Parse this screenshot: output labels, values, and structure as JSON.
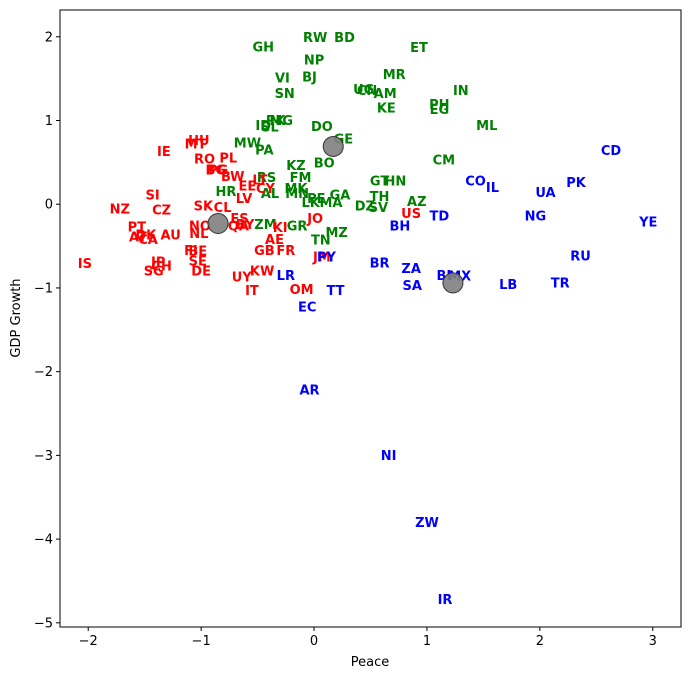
{
  "chart_data": {
    "type": "scatter",
    "title": "",
    "xlabel": "Peace",
    "ylabel": "GDP Growth",
    "xlim": [
      -2.25,
      3.25
    ],
    "ylim": [
      -5.05,
      2.32
    ],
    "xticks": [
      -2,
      -1,
      0,
      1,
      2,
      3
    ],
    "yticks": [
      -5,
      -4,
      -3,
      -2,
      -1,
      0,
      1,
      2
    ],
    "grid": false,
    "cluster_colors": {
      "red": "#ff0000",
      "green": "#008000",
      "blue": "#0000ff",
      "centroid": "#808080"
    },
    "centroids": [
      {
        "x": -0.85,
        "y": -0.23
      },
      {
        "x": 0.17,
        "y": 0.69
      },
      {
        "x": 1.23,
        "y": -0.94
      }
    ],
    "points": [
      {
        "label": "RW",
        "x": 0.01,
        "y": 1.99,
        "cluster": "green"
      },
      {
        "label": "BD",
        "x": 0.27,
        "y": 1.99,
        "cluster": "green"
      },
      {
        "label": "GH",
        "x": -0.45,
        "y": 1.88,
        "cluster": "green"
      },
      {
        "label": "ET",
        "x": 0.93,
        "y": 1.87,
        "cluster": "green"
      },
      {
        "label": "NP",
        "x": 0.0,
        "y": 1.72,
        "cluster": "green"
      },
      {
        "label": "VI",
        "x": -0.28,
        "y": 1.51,
        "cluster": "green"
      },
      {
        "label": "BJ",
        "x": -0.04,
        "y": 1.52,
        "cluster": "green"
      },
      {
        "label": "MR",
        "x": 0.71,
        "y": 1.55,
        "cluster": "green"
      },
      {
        "label": "SN",
        "x": -0.26,
        "y": 1.32,
        "cluster": "green"
      },
      {
        "label": "UG",
        "x": 0.44,
        "y": 1.37,
        "cluster": "green"
      },
      {
        "label": "CN",
        "x": 0.47,
        "y": 1.36,
        "cluster": "green"
      },
      {
        "label": "AM",
        "x": 0.63,
        "y": 1.32,
        "cluster": "green"
      },
      {
        "label": "IN",
        "x": 1.3,
        "y": 1.36,
        "cluster": "green"
      },
      {
        "label": "KE",
        "x": 0.64,
        "y": 1.15,
        "cluster": "green"
      },
      {
        "label": "PH",
        "x": 1.11,
        "y": 1.19,
        "cluster": "green"
      },
      {
        "label": "EG",
        "x": 1.11,
        "y": 1.13,
        "cluster": "green"
      },
      {
        "label": "PK",
        "x": -0.34,
        "y": 1.0,
        "cluster": "green"
      },
      {
        "label": "MG",
        "x": -0.29,
        "y": 1.0,
        "cluster": "green"
      },
      {
        "label": "ID",
        "x": -0.45,
        "y": 0.94,
        "cluster": "green"
      },
      {
        "label": "SL",
        "x": -0.39,
        "y": 0.92,
        "cluster": "green"
      },
      {
        "label": "DO",
        "x": 0.07,
        "y": 0.93,
        "cluster": "green"
      },
      {
        "label": "ML",
        "x": 1.53,
        "y": 0.94,
        "cluster": "green"
      },
      {
        "label": "GE",
        "x": 0.26,
        "y": 0.78,
        "cluster": "green"
      },
      {
        "label": "MW",
        "x": -0.59,
        "y": 0.73,
        "cluster": "green"
      },
      {
        "label": "PA",
        "x": -0.44,
        "y": 0.65,
        "cluster": "green"
      },
      {
        "label": "CM",
        "x": 1.15,
        "y": 0.53,
        "cluster": "green"
      },
      {
        "label": "KZ",
        "x": -0.16,
        "y": 0.46,
        "cluster": "green"
      },
      {
        "label": "BO",
        "x": 0.09,
        "y": 0.49,
        "cluster": "green"
      },
      {
        "label": "RS",
        "x": -0.42,
        "y": 0.32,
        "cluster": "green"
      },
      {
        "label": "FM",
        "x": -0.12,
        "y": 0.32,
        "cluster": "green"
      },
      {
        "label": "GT",
        "x": 0.58,
        "y": 0.28,
        "cluster": "green"
      },
      {
        "label": "HN",
        "x": 0.72,
        "y": 0.28,
        "cluster": "green"
      },
      {
        "label": "MK",
        "x": -0.16,
        "y": 0.19,
        "cluster": "green"
      },
      {
        "label": "HR",
        "x": -0.78,
        "y": 0.15,
        "cluster": "green"
      },
      {
        "label": "AL",
        "x": -0.39,
        "y": 0.13,
        "cluster": "green"
      },
      {
        "label": "MN",
        "x": -0.15,
        "y": 0.13,
        "cluster": "green"
      },
      {
        "label": "GA",
        "x": 0.23,
        "y": 0.11,
        "cluster": "green"
      },
      {
        "label": "TH",
        "x": 0.58,
        "y": 0.09,
        "cluster": "green"
      },
      {
        "label": "AZ",
        "x": 0.91,
        "y": 0.03,
        "cluster": "green"
      },
      {
        "label": "LK",
        "x": -0.03,
        "y": 0.02,
        "cluster": "green"
      },
      {
        "label": "PE",
        "x": 0.02,
        "y": 0.07,
        "cluster": "green"
      },
      {
        "label": "MA",
        "x": 0.15,
        "y": 0.02,
        "cluster": "green"
      },
      {
        "label": "DZ",
        "x": 0.45,
        "y": -0.02,
        "cluster": "green"
      },
      {
        "label": "SV",
        "x": 0.57,
        "y": -0.04,
        "cluster": "green"
      },
      {
        "label": "ZM",
        "x": -0.43,
        "y": -0.24,
        "cluster": "green"
      },
      {
        "label": "GR",
        "x": -0.15,
        "y": -0.26,
        "cluster": "green"
      },
      {
        "label": "MZ",
        "x": 0.2,
        "y": -0.34,
        "cluster": "green"
      },
      {
        "label": "TN",
        "x": 0.06,
        "y": -0.43,
        "cluster": "green"
      },
      {
        "label": "HU",
        "x": -1.02,
        "y": 0.76,
        "cluster": "red"
      },
      {
        "label": "MT",
        "x": -1.05,
        "y": 0.72,
        "cluster": "red"
      },
      {
        "label": "IE",
        "x": -1.33,
        "y": 0.63,
        "cluster": "red"
      },
      {
        "label": "RO",
        "x": -0.97,
        "y": 0.54,
        "cluster": "red"
      },
      {
        "label": "PL",
        "x": -0.76,
        "y": 0.55,
        "cluster": "red"
      },
      {
        "label": "BG",
        "x": -0.87,
        "y": 0.41,
        "cluster": "red"
      },
      {
        "label": "PG",
        "x": -0.85,
        "y": 0.41,
        "cluster": "red"
      },
      {
        "label": "BW",
        "x": -0.72,
        "y": 0.33,
        "cluster": "red"
      },
      {
        "label": "LT",
        "x": -0.48,
        "y": 0.29,
        "cluster": "red"
      },
      {
        "label": "EE",
        "x": -0.59,
        "y": 0.22,
        "cluster": "red"
      },
      {
        "label": "CY",
        "x": -0.43,
        "y": 0.19,
        "cluster": "red"
      },
      {
        "label": "LV",
        "x": -0.62,
        "y": 0.07,
        "cluster": "red"
      },
      {
        "label": "SI",
        "x": -1.43,
        "y": 0.11,
        "cluster": "red"
      },
      {
        "label": "SK",
        "x": -0.98,
        "y": -0.02,
        "cluster": "red"
      },
      {
        "label": "CL",
        "x": -0.81,
        "y": -0.04,
        "cluster": "red"
      },
      {
        "label": "NZ",
        "x": -1.72,
        "y": -0.06,
        "cluster": "red"
      },
      {
        "label": "CZ",
        "x": -1.35,
        "y": -0.07,
        "cluster": "red"
      },
      {
        "label": "ES",
        "x": -0.66,
        "y": -0.17,
        "cluster": "red"
      },
      {
        "label": "JO",
        "x": 0.01,
        "y": -0.17,
        "cluster": "red"
      },
      {
        "label": "US",
        "x": 0.86,
        "y": -0.11,
        "cluster": "red"
      },
      {
        "label": "PT",
        "x": -1.57,
        "y": -0.27,
        "cluster": "red"
      },
      {
        "label": "NO",
        "x": -1.01,
        "y": -0.26,
        "cluster": "red"
      },
      {
        "label": "QA",
        "x": -0.67,
        "y": -0.26,
        "cluster": "red"
      },
      {
        "label": "BY",
        "x": -0.61,
        "y": -0.24,
        "cluster": "red"
      },
      {
        "label": "KI",
        "x": -0.3,
        "y": -0.28,
        "cluster": "red"
      },
      {
        "label": "AT",
        "x": -1.56,
        "y": -0.39,
        "cluster": "red"
      },
      {
        "label": "DK",
        "x": -1.49,
        "y": -0.37,
        "cluster": "red"
      },
      {
        "label": "CA",
        "x": -1.47,
        "y": -0.42,
        "cluster": "red"
      },
      {
        "label": "AU",
        "x": -1.27,
        "y": -0.37,
        "cluster": "red"
      },
      {
        "label": "NL",
        "x": -1.02,
        "y": -0.35,
        "cluster": "red"
      },
      {
        "label": "AE",
        "x": -0.35,
        "y": -0.42,
        "cluster": "red"
      },
      {
        "label": "FI",
        "x": -1.09,
        "y": -0.55,
        "cluster": "red"
      },
      {
        "label": "BE",
        "x": -1.03,
        "y": -0.56,
        "cluster": "red"
      },
      {
        "label": "GB",
        "x": -0.44,
        "y": -0.55,
        "cluster": "red"
      },
      {
        "label": "FR",
        "x": -0.25,
        "y": -0.55,
        "cluster": "red"
      },
      {
        "label": "SE",
        "x": -1.03,
        "y": -0.68,
        "cluster": "red"
      },
      {
        "label": "IS",
        "x": -2.03,
        "y": -0.71,
        "cluster": "red"
      },
      {
        "label": "JP",
        "x": -1.38,
        "y": -0.69,
        "cluster": "red"
      },
      {
        "label": "CH",
        "x": -1.35,
        "y": -0.74,
        "cluster": "red"
      },
      {
        "label": "SG",
        "x": -1.42,
        "y": -0.8,
        "cluster": "red"
      },
      {
        "label": "DE",
        "x": -1.0,
        "y": -0.8,
        "cluster": "red"
      },
      {
        "label": "KW",
        "x": -0.46,
        "y": -0.8,
        "cluster": "red"
      },
      {
        "label": "UY",
        "x": -0.64,
        "y": -0.87,
        "cluster": "red"
      },
      {
        "label": "IT",
        "x": -0.55,
        "y": -1.03,
        "cluster": "red"
      },
      {
        "label": "OM",
        "x": -0.11,
        "y": -1.02,
        "cluster": "red"
      },
      {
        "label": "JM",
        "x": 0.07,
        "y": -0.63,
        "cluster": "red"
      },
      {
        "label": "CD",
        "x": 2.63,
        "y": 0.64,
        "cluster": "blue"
      },
      {
        "label": "CO",
        "x": 1.43,
        "y": 0.28,
        "cluster": "blue"
      },
      {
        "label": "IL",
        "x": 1.58,
        "y": 0.2,
        "cluster": "blue"
      },
      {
        "label": "UA",
        "x": 2.05,
        "y": 0.14,
        "cluster": "blue"
      },
      {
        "label": "PK",
        "x": 2.32,
        "y": 0.26,
        "cluster": "blue"
      },
      {
        "label": "TD",
        "x": 1.11,
        "y": -0.14,
        "cluster": "blue"
      },
      {
        "label": "NG",
        "x": 1.96,
        "y": -0.14,
        "cluster": "blue"
      },
      {
        "label": "YE",
        "x": 2.96,
        "y": -0.21,
        "cluster": "blue"
      },
      {
        "label": "BH",
        "x": 0.76,
        "y": -0.26,
        "cluster": "blue"
      },
      {
        "label": "PY",
        "x": 0.11,
        "y": -0.63,
        "cluster": "blue"
      },
      {
        "label": "RU",
        "x": 2.36,
        "y": -0.62,
        "cluster": "blue"
      },
      {
        "label": "BR",
        "x": 0.58,
        "y": -0.7,
        "cluster": "blue"
      },
      {
        "label": "ZA",
        "x": 0.86,
        "y": -0.77,
        "cluster": "blue"
      },
      {
        "label": "LR",
        "x": -0.25,
        "y": -0.85,
        "cluster": "blue"
      },
      {
        "label": "BI",
        "x": 1.15,
        "y": -0.85,
        "cluster": "blue"
      },
      {
        "label": "MX",
        "x": 1.29,
        "y": -0.86,
        "cluster": "blue"
      },
      {
        "label": "TR",
        "x": 2.18,
        "y": -0.94,
        "cluster": "blue"
      },
      {
        "label": "SA",
        "x": 0.87,
        "y": -0.97,
        "cluster": "blue"
      },
      {
        "label": "LB",
        "x": 1.72,
        "y": -0.96,
        "cluster": "blue"
      },
      {
        "label": "TT",
        "x": 0.19,
        "y": -1.03,
        "cluster": "blue"
      },
      {
        "label": "EC",
        "x": -0.06,
        "y": -1.23,
        "cluster": "blue"
      },
      {
        "label": "AR",
        "x": -0.04,
        "y": -2.22,
        "cluster": "blue"
      },
      {
        "label": "NI",
        "x": 0.66,
        "y": -3.0,
        "cluster": "blue"
      },
      {
        "label": "ZW",
        "x": 1.0,
        "y": -3.8,
        "cluster": "blue"
      },
      {
        "label": "IR",
        "x": 1.16,
        "y": -4.72,
        "cluster": "blue"
      }
    ]
  }
}
